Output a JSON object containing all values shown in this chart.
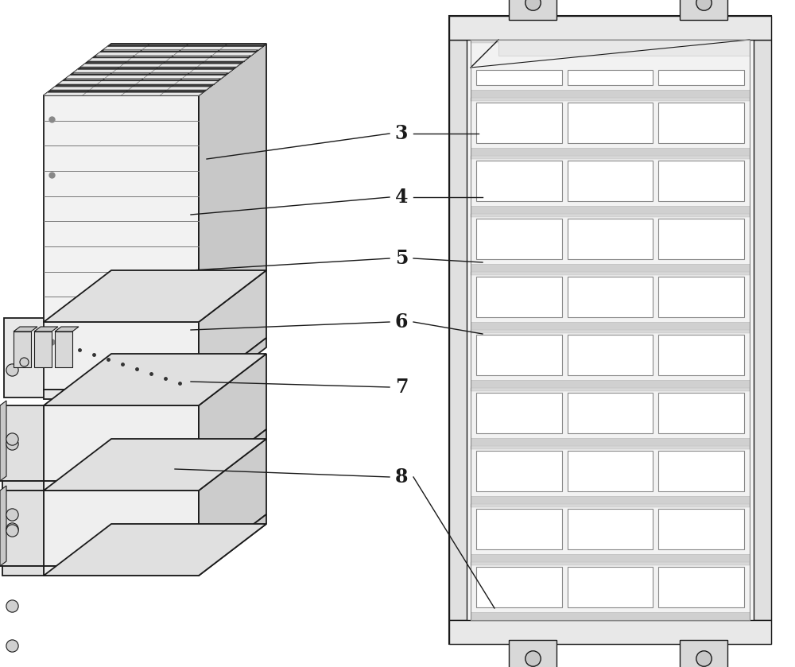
{
  "bg_color": "#ffffff",
  "line_color": "#1a1a1a",
  "dark_gray": "#555555",
  "med_gray": "#aaaaaa",
  "light_gray": "#d8d8d8",
  "very_light_gray": "#f0f0f0",
  "coil_gray": "#c8c8c8",
  "label_fontsize": 17,
  "labels": [
    "3",
    "4",
    "5",
    "6",
    "7",
    "8"
  ],
  "fig_w": 10.0,
  "fig_h": 8.39
}
